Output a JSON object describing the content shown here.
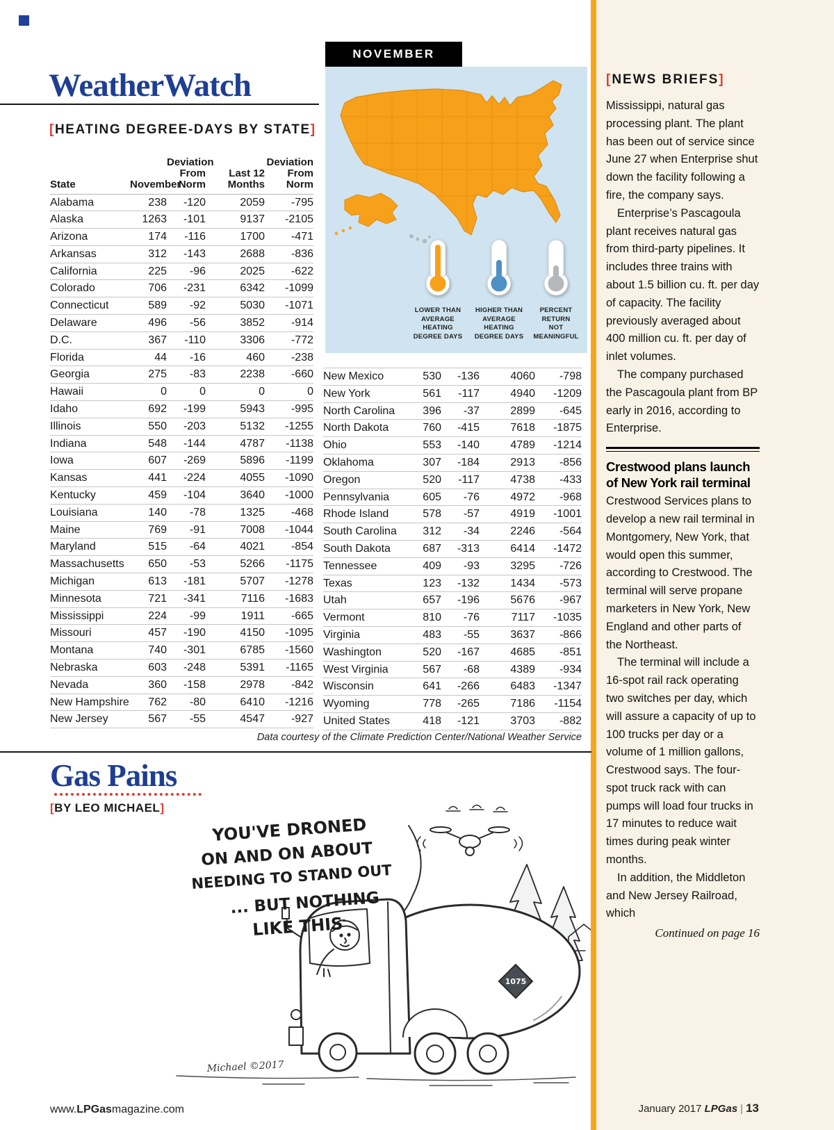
{
  "decor": {
    "bracket_open": "[",
    "bracket_close": "]"
  },
  "colors": {
    "brand_blue": "#1e3e93",
    "accent_red": "#e03c31",
    "map_orange": "#f7a11b",
    "legend_blue": "#4f90c5",
    "legend_gray": "#b5b8ba",
    "sidebar_cream": "#f8f3e6"
  },
  "weatherwatch": {
    "title": "WeatherWatch",
    "section_heading": "HEATING DEGREE-DAYS BY STATE",
    "table": {
      "headers": [
        "State",
        "November",
        "Deviation\nFrom\nNorm",
        "Last 12\nMonths",
        "Deviation\nFrom\nNorm"
      ],
      "left_rows": [
        [
          "Alabama",
          "238",
          "-120",
          "2059",
          "-795"
        ],
        [
          "Alaska",
          "1263",
          "-101",
          "9137",
          "-2105"
        ],
        [
          "Arizona",
          "174",
          "-116",
          "1700",
          "-471"
        ],
        [
          "Arkansas",
          "312",
          "-143",
          "2688",
          "-836"
        ],
        [
          "California",
          "225",
          "-96",
          "2025",
          "-622"
        ],
        [
          "Colorado",
          "706",
          "-231",
          "6342",
          "-1099"
        ],
        [
          "Connecticut",
          "589",
          "-92",
          "5030",
          "-1071"
        ],
        [
          "Delaware",
          "496",
          "-56",
          "3852",
          "-914"
        ],
        [
          "D.C.",
          "367",
          "-110",
          "3306",
          "-772"
        ],
        [
          "Florida",
          "44",
          "-16",
          "460",
          "-238"
        ],
        [
          "Georgia",
          "275",
          "-83",
          "2238",
          "-660"
        ],
        [
          "Hawaii",
          "0",
          "0",
          "0",
          "0"
        ],
        [
          "Idaho",
          "692",
          "-199",
          "5943",
          "-995"
        ],
        [
          "Illinois",
          "550",
          "-203",
          "5132",
          "-1255"
        ],
        [
          "Indiana",
          "548",
          "-144",
          "4787",
          "-1138"
        ],
        [
          "Iowa",
          "607",
          "-269",
          "5896",
          "-1199"
        ],
        [
          "Kansas",
          "441",
          "-224",
          "4055",
          "-1090"
        ],
        [
          "Kentucky",
          "459",
          "-104",
          "3640",
          "-1000"
        ],
        [
          "Louisiana",
          "140",
          "-78",
          "1325",
          "-468"
        ],
        [
          "Maine",
          "769",
          "-91",
          "7008",
          "-1044"
        ],
        [
          "Maryland",
          "515",
          "-64",
          "4021",
          "-854"
        ],
        [
          "Massachusetts",
          "650",
          "-53",
          "5266",
          "-1175"
        ],
        [
          "Michigan",
          "613",
          "-181",
          "5707",
          "-1278"
        ],
        [
          "Minnesota",
          "721",
          "-341",
          "7116",
          "-1683"
        ],
        [
          "Mississippi",
          "224",
          "-99",
          "1911",
          "-665"
        ],
        [
          "Missouri",
          "457",
          "-190",
          "4150",
          "-1095"
        ],
        [
          "Montana",
          "740",
          "-301",
          "6785",
          "-1560"
        ],
        [
          "Nebraska",
          "603",
          "-248",
          "5391",
          "-1165"
        ],
        [
          "Nevada",
          "360",
          "-158",
          "2978",
          "-842"
        ],
        [
          "New Hampshire",
          "762",
          "-80",
          "6410",
          "-1216"
        ],
        [
          "New Jersey",
          "567",
          "-55",
          "4547",
          "-927"
        ]
      ],
      "right_rows": [
        [
          "New Mexico",
          "530",
          "-136",
          "4060",
          "-798"
        ],
        [
          "New York",
          "561",
          "-117",
          "4940",
          "-1209"
        ],
        [
          "North Carolina",
          "396",
          "-37",
          "2899",
          "-645"
        ],
        [
          "North Dakota",
          "760",
          "-415",
          "7618",
          "-1875"
        ],
        [
          "Ohio",
          "553",
          "-140",
          "4789",
          "-1214"
        ],
        [
          "Oklahoma",
          "307",
          "-184",
          "2913",
          "-856"
        ],
        [
          "Oregon",
          "520",
          "-117",
          "4738",
          "-433"
        ],
        [
          "Pennsylvania",
          "605",
          "-76",
          "4972",
          "-968"
        ],
        [
          "Rhode Island",
          "578",
          "-57",
          "4919",
          "-1001"
        ],
        [
          "South Carolina",
          "312",
          "-34",
          "2246",
          "-564"
        ],
        [
          "South Dakota",
          "687",
          "-313",
          "6414",
          "-1472"
        ],
        [
          "Tennessee",
          "409",
          "-93",
          "3295",
          "-726"
        ],
        [
          "Texas",
          "123",
          "-132",
          "1434",
          "-573"
        ],
        [
          "Utah",
          "657",
          "-196",
          "5676",
          "-967"
        ],
        [
          "Vermont",
          "810",
          "-76",
          "7117",
          "-1035"
        ],
        [
          "Virginia",
          "483",
          "-55",
          "3637",
          "-866"
        ],
        [
          "Washington",
          "520",
          "-167",
          "4685",
          "-851"
        ],
        [
          "West Virginia",
          "567",
          "-68",
          "4389",
          "-934"
        ],
        [
          "Wisconsin",
          "641",
          "-266",
          "6483",
          "-1347"
        ],
        [
          "Wyoming",
          "778",
          "-265",
          "7186",
          "-1154"
        ],
        [
          "United States",
          "418",
          "-121",
          "3703",
          "-882"
        ]
      ]
    },
    "courtesy": "Data courtesy of the Climate Prediction Center/National Weather Service"
  },
  "map": {
    "label": "NOVEMBER",
    "legend": [
      {
        "label": "LOWER THAN\nAVERAGE\nHEATING\nDEGREE DAYS",
        "color": "#f7a11b"
      },
      {
        "label": "HIGHER THAN\nAVERAGE\nHEATING\nDEGREE DAYS",
        "color": "#4f90c5"
      },
      {
        "label": "PERCENT\nRETURN\nNOT\nMEANINGFUL",
        "color": "#b5b8ba"
      }
    ]
  },
  "news_briefs": {
    "heading": "NEWS BRIEFS",
    "part1": [
      {
        "text": "Mississippi, natural gas processing plant. The plant has been out of service since June 27 when Enterprise shut down the facility following a fire, the company says.",
        "indent": false
      },
      {
        "text": "Enterprise’s Pascagoula plant receives natural gas from third-party pipelines. It includes three trains with about 1.5 billion cu. ft. per day of capacity. The facility previously averaged about 400 million cu. ft. per day of inlet volumes.",
        "indent": true
      },
      {
        "text": "The company purchased the Pascagoula plant from BP early in 2016, according to Enterprise.",
        "indent": true
      }
    ],
    "subhead": "Crestwood plans launch of New York rail terminal",
    "part2": [
      {
        "text": "Crestwood Services plans to develop a new rail terminal in Montgomery, New York, that would open this summer, according to Crestwood. The terminal will serve propane marketers in New York, New England and other parts of the Northeast.",
        "indent": false
      },
      {
        "text": "The terminal will include a 16-spot rail rack operating two switches per day, which will assure a capacity of up to 100 trucks per day or a volume of 1 million gallons, Crestwood says. The four-spot truck rack with can pumps will load four trucks in 17 minutes to reduce wait times during peak winter months.",
        "indent": true
      },
      {
        "text": "In addition, the Middleton and New Jersey Railroad, which",
        "indent": true
      }
    ],
    "continued": "Continued on page 16"
  },
  "gas_pains": {
    "title": "Gas Pains",
    "byline": "BY LEO MICHAEL",
    "speech_lines": [
      "YOU'VE DRONED",
      "ON AND ON ABOUT",
      "NEEDING TO STAND OUT",
      "... BUT NOTHING",
      "LIKE THIS"
    ],
    "placard": "1075",
    "signature": "Michael ©2017"
  },
  "footer": {
    "site_prefix": "www.",
    "site_brand": "LPGas",
    "site_suffix": "magazine.com",
    "issue": "January 2017",
    "brand": "LPGas",
    "divider": "|",
    "page_number": "13"
  }
}
